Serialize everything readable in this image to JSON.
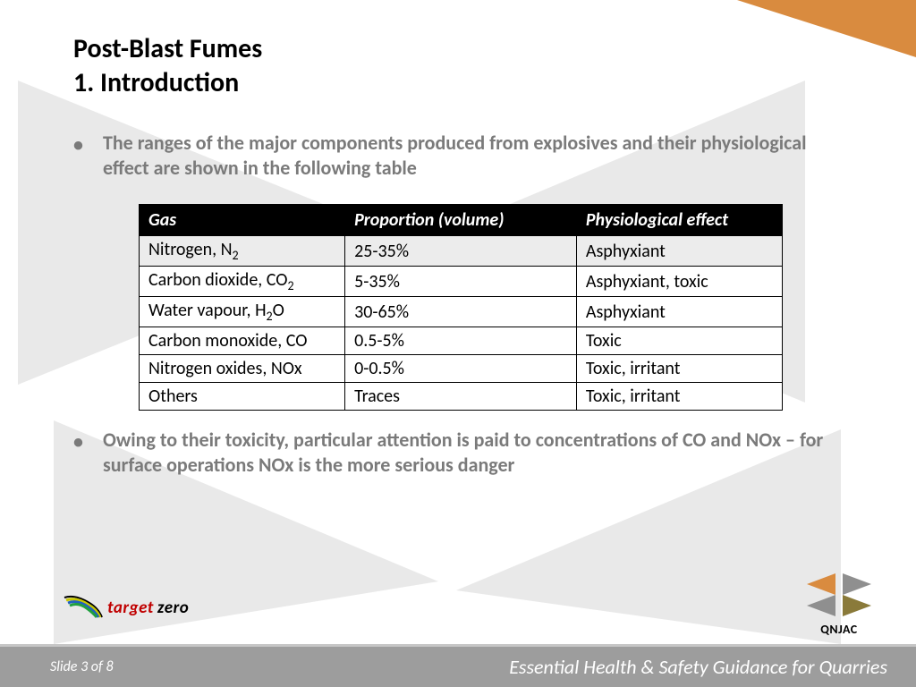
{
  "accent_color": "#d98b3f",
  "title": {
    "line1": "Post-Blast Fumes",
    "line2": "1. Introduction"
  },
  "bullets": {
    "b1": "The ranges of the major components produced from explosives and their physiological effect are shown in the following table",
    "b2": "Owing to their toxicity, particular attention is paid to concentrations of CO and NOx – for surface operations NOx is the more serious danger"
  },
  "table": {
    "columns": [
      "Gas",
      "Proportion (volume)",
      "Physiological effect"
    ],
    "col_widths_pct": [
      32,
      36,
      32
    ],
    "header_bg": "#000000",
    "header_fg": "#ffffff",
    "row_shade_bg": "#ececec",
    "border_color": "#000000",
    "rows": [
      {
        "gas_html": "Nitrogen, N<sub class='sub'>2</sub>",
        "proportion": "25-35%",
        "effect": "Asphyxiant",
        "shaded": true
      },
      {
        "gas_html": "Carbon dioxide, CO<sub class='sub'>2</sub>",
        "proportion": "5-35%",
        "effect": "Asphyxiant, toxic",
        "shaded": false
      },
      {
        "gas_html": "Water vapour, H<sub class='sub'>2</sub>O",
        "proportion": "30-65%",
        "effect": "Asphyxiant",
        "shaded": false
      },
      {
        "gas_html": "Carbon monoxide, CO",
        "proportion": "0.5-5%",
        "effect": "Toxic",
        "shaded": false
      },
      {
        "gas_html": "Nitrogen oxides, NOx",
        "proportion": "0-0.5%",
        "effect": "Toxic, irritant",
        "shaded": false
      },
      {
        "gas_html": "Others",
        "proportion": "Traces",
        "effect": "Toxic, irritant",
        "shaded": false
      }
    ]
  },
  "logos": {
    "target_zero": {
      "target": "target",
      "zero": "zero"
    },
    "qnjac": {
      "label": "QNJAC",
      "colors": {
        "orange": "#d98b3f",
        "grey": "#8f8f8f",
        "olive": "#8a7a3a"
      }
    }
  },
  "footer": {
    "slide_label": "Slide 3 of 8",
    "doc_title": "Essential Health & Safety Guidance for Quarries",
    "bar_bg": "#9d9d9d",
    "bar_border": "#c6c6c6"
  },
  "bg_shapes": {
    "grey": "#e9e9e9"
  }
}
